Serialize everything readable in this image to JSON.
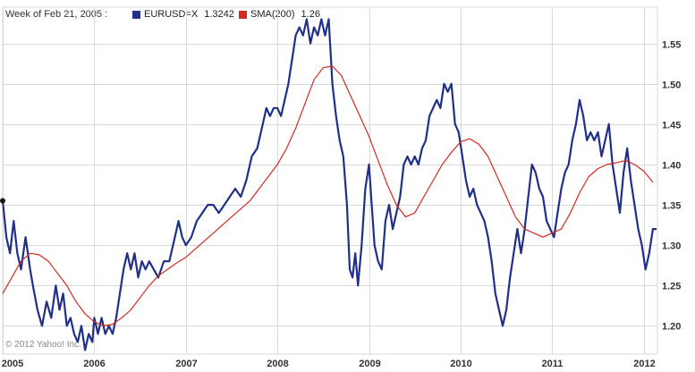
{
  "header": {
    "week_label": "Week of Feb 21, 2005 :",
    "series_1_label": "EURUSD=X",
    "series_1_value": "1.3242",
    "series_2_label": "SMA(200)",
    "series_2_value": "1.26"
  },
  "copyright": "© 2012 Yahoo! Inc.",
  "colors": {
    "primary": "#1f2f8a",
    "sma": "#d42a1e",
    "grid": "#d9d9d9",
    "axis": "#999999"
  },
  "chart_data": {
    "type": "line",
    "x_tick_labels": [
      "2005",
      "2006",
      "2007",
      "2008",
      "2009",
      "2010",
      "2011",
      "2012"
    ],
    "y_tick_labels": [
      "1.55",
      "1.50",
      "1.45",
      "1.40",
      "1.35",
      "1.30",
      "1.25",
      "1.20"
    ],
    "y_ticks": [
      1.55,
      1.5,
      1.45,
      1.4,
      1.35,
      1.3,
      1.25,
      1.2
    ],
    "xlim": [
      2005.0,
      2012.15
    ],
    "ylim": [
      1.165,
      1.595
    ],
    "grid": true,
    "series": [
      {
        "name": "EURUSD=X",
        "points": [
          [
            2005.0,
            1.355
          ],
          [
            2005.04,
            1.31
          ],
          [
            2005.08,
            1.29
          ],
          [
            2005.12,
            1.33
          ],
          [
            2005.16,
            1.29
          ],
          [
            2005.2,
            1.27
          ],
          [
            2005.25,
            1.31
          ],
          [
            2005.3,
            1.27
          ],
          [
            2005.33,
            1.25
          ],
          [
            2005.38,
            1.22
          ],
          [
            2005.43,
            1.2
          ],
          [
            2005.48,
            1.23
          ],
          [
            2005.53,
            1.21
          ],
          [
            2005.58,
            1.25
          ],
          [
            2005.62,
            1.22
          ],
          [
            2005.66,
            1.24
          ],
          [
            2005.7,
            1.2
          ],
          [
            2005.74,
            1.21
          ],
          [
            2005.78,
            1.19
          ],
          [
            2005.82,
            1.18
          ],
          [
            2005.86,
            1.2
          ],
          [
            2005.9,
            1.17
          ],
          [
            2005.94,
            1.19
          ],
          [
            2005.98,
            1.18
          ],
          [
            2006.0,
            1.21
          ],
          [
            2006.04,
            1.19
          ],
          [
            2006.08,
            1.21
          ],
          [
            2006.12,
            1.19
          ],
          [
            2006.16,
            1.2
          ],
          [
            2006.2,
            1.19
          ],
          [
            2006.24,
            1.21
          ],
          [
            2006.28,
            1.24
          ],
          [
            2006.32,
            1.27
          ],
          [
            2006.36,
            1.29
          ],
          [
            2006.4,
            1.27
          ],
          [
            2006.44,
            1.29
          ],
          [
            2006.48,
            1.26
          ],
          [
            2006.52,
            1.28
          ],
          [
            2006.56,
            1.27
          ],
          [
            2006.6,
            1.28
          ],
          [
            2006.65,
            1.27
          ],
          [
            2006.7,
            1.26
          ],
          [
            2006.76,
            1.28
          ],
          [
            2006.82,
            1.28
          ],
          [
            2006.88,
            1.31
          ],
          [
            2006.92,
            1.33
          ],
          [
            2006.96,
            1.31
          ],
          [
            2007.0,
            1.3
          ],
          [
            2007.06,
            1.31
          ],
          [
            2007.12,
            1.33
          ],
          [
            2007.18,
            1.34
          ],
          [
            2007.24,
            1.35
          ],
          [
            2007.3,
            1.35
          ],
          [
            2007.36,
            1.34
          ],
          [
            2007.42,
            1.35
          ],
          [
            2007.48,
            1.36
          ],
          [
            2007.54,
            1.37
          ],
          [
            2007.6,
            1.36
          ],
          [
            2007.66,
            1.38
          ],
          [
            2007.72,
            1.41
          ],
          [
            2007.78,
            1.42
          ],
          [
            2007.84,
            1.45
          ],
          [
            2007.88,
            1.47
          ],
          [
            2007.92,
            1.46
          ],
          [
            2007.96,
            1.47
          ],
          [
            2008.0,
            1.47
          ],
          [
            2008.04,
            1.46
          ],
          [
            2008.08,
            1.48
          ],
          [
            2008.12,
            1.5
          ],
          [
            2008.16,
            1.53
          ],
          [
            2008.2,
            1.56
          ],
          [
            2008.24,
            1.57
          ],
          [
            2008.28,
            1.56
          ],
          [
            2008.32,
            1.58
          ],
          [
            2008.36,
            1.55
          ],
          [
            2008.4,
            1.57
          ],
          [
            2008.44,
            1.56
          ],
          [
            2008.48,
            1.58
          ],
          [
            2008.52,
            1.56
          ],
          [
            2008.56,
            1.58
          ],
          [
            2008.6,
            1.5
          ],
          [
            2008.64,
            1.46
          ],
          [
            2008.68,
            1.43
          ],
          [
            2008.72,
            1.41
          ],
          [
            2008.76,
            1.35
          ],
          [
            2008.79,
            1.27
          ],
          [
            2008.82,
            1.26
          ],
          [
            2008.85,
            1.29
          ],
          [
            2008.88,
            1.25
          ],
          [
            2008.92,
            1.3
          ],
          [
            2008.96,
            1.37
          ],
          [
            2009.0,
            1.4
          ],
          [
            2009.03,
            1.35
          ],
          [
            2009.06,
            1.3
          ],
          [
            2009.1,
            1.28
          ],
          [
            2009.14,
            1.27
          ],
          [
            2009.18,
            1.33
          ],
          [
            2009.22,
            1.35
          ],
          [
            2009.26,
            1.32
          ],
          [
            2009.3,
            1.34
          ],
          [
            2009.34,
            1.36
          ],
          [
            2009.38,
            1.4
          ],
          [
            2009.42,
            1.41
          ],
          [
            2009.46,
            1.4
          ],
          [
            2009.5,
            1.41
          ],
          [
            2009.54,
            1.4
          ],
          [
            2009.58,
            1.42
          ],
          [
            2009.62,
            1.43
          ],
          [
            2009.66,
            1.46
          ],
          [
            2009.7,
            1.47
          ],
          [
            2009.74,
            1.48
          ],
          [
            2009.78,
            1.47
          ],
          [
            2009.82,
            1.5
          ],
          [
            2009.86,
            1.49
          ],
          [
            2009.9,
            1.5
          ],
          [
            2009.94,
            1.45
          ],
          [
            2009.98,
            1.44
          ],
          [
            2010.02,
            1.41
          ],
          [
            2010.06,
            1.38
          ],
          [
            2010.1,
            1.36
          ],
          [
            2010.14,
            1.37
          ],
          [
            2010.18,
            1.35
          ],
          [
            2010.22,
            1.34
          ],
          [
            2010.26,
            1.33
          ],
          [
            2010.3,
            1.31
          ],
          [
            2010.34,
            1.28
          ],
          [
            2010.38,
            1.24
          ],
          [
            2010.42,
            1.22
          ],
          [
            2010.46,
            1.2
          ],
          [
            2010.5,
            1.22
          ],
          [
            2010.54,
            1.26
          ],
          [
            2010.58,
            1.29
          ],
          [
            2010.62,
            1.32
          ],
          [
            2010.66,
            1.29
          ],
          [
            2010.7,
            1.32
          ],
          [
            2010.74,
            1.36
          ],
          [
            2010.78,
            1.4
          ],
          [
            2010.82,
            1.39
          ],
          [
            2010.86,
            1.37
          ],
          [
            2010.9,
            1.36
          ],
          [
            2010.94,
            1.33
          ],
          [
            2010.98,
            1.32
          ],
          [
            2011.02,
            1.31
          ],
          [
            2011.06,
            1.34
          ],
          [
            2011.1,
            1.37
          ],
          [
            2011.14,
            1.39
          ],
          [
            2011.18,
            1.4
          ],
          [
            2011.22,
            1.43
          ],
          [
            2011.26,
            1.45
          ],
          [
            2011.3,
            1.48
          ],
          [
            2011.34,
            1.46
          ],
          [
            2011.38,
            1.43
          ],
          [
            2011.42,
            1.44
          ],
          [
            2011.46,
            1.43
          ],
          [
            2011.5,
            1.44
          ],
          [
            2011.54,
            1.41
          ],
          [
            2011.58,
            1.43
          ],
          [
            2011.62,
            1.45
          ],
          [
            2011.66,
            1.4
          ],
          [
            2011.7,
            1.37
          ],
          [
            2011.74,
            1.34
          ],
          [
            2011.78,
            1.39
          ],
          [
            2011.82,
            1.42
          ],
          [
            2011.86,
            1.38
          ],
          [
            2011.9,
            1.35
          ],
          [
            2011.94,
            1.32
          ],
          [
            2011.98,
            1.3
          ],
          [
            2012.02,
            1.27
          ],
          [
            2012.06,
            1.29
          ],
          [
            2012.1,
            1.32
          ],
          [
            2012.14,
            1.32
          ]
        ]
      },
      {
        "name": "SMA(200)",
        "points": [
          [
            2005.0,
            1.24
          ],
          [
            2005.1,
            1.26
          ],
          [
            2005.2,
            1.28
          ],
          [
            2005.3,
            1.29
          ],
          [
            2005.4,
            1.288
          ],
          [
            2005.5,
            1.28
          ],
          [
            2005.6,
            1.265
          ],
          [
            2005.7,
            1.25
          ],
          [
            2005.8,
            1.23
          ],
          [
            2005.9,
            1.215
          ],
          [
            2006.0,
            1.205
          ],
          [
            2006.1,
            1.2
          ],
          [
            2006.2,
            1.202
          ],
          [
            2006.3,
            1.21
          ],
          [
            2006.4,
            1.22
          ],
          [
            2006.5,
            1.235
          ],
          [
            2006.6,
            1.25
          ],
          [
            2006.7,
            1.262
          ],
          [
            2006.8,
            1.27
          ],
          [
            2006.9,
            1.278
          ],
          [
            2007.0,
            1.285
          ],
          [
            2007.1,
            1.295
          ],
          [
            2007.2,
            1.305
          ],
          [
            2007.3,
            1.315
          ],
          [
            2007.4,
            1.325
          ],
          [
            2007.5,
            1.335
          ],
          [
            2007.6,
            1.345
          ],
          [
            2007.7,
            1.355
          ],
          [
            2007.8,
            1.37
          ],
          [
            2007.9,
            1.385
          ],
          [
            2008.0,
            1.4
          ],
          [
            2008.1,
            1.42
          ],
          [
            2008.2,
            1.445
          ],
          [
            2008.3,
            1.475
          ],
          [
            2008.4,
            1.505
          ],
          [
            2008.5,
            1.52
          ],
          [
            2008.6,
            1.522
          ],
          [
            2008.7,
            1.51
          ],
          [
            2008.8,
            1.485
          ],
          [
            2008.9,
            1.46
          ],
          [
            2009.0,
            1.435
          ],
          [
            2009.1,
            1.405
          ],
          [
            2009.2,
            1.375
          ],
          [
            2009.3,
            1.35
          ],
          [
            2009.4,
            1.335
          ],
          [
            2009.5,
            1.34
          ],
          [
            2009.6,
            1.36
          ],
          [
            2009.7,
            1.38
          ],
          [
            2009.8,
            1.4
          ],
          [
            2009.9,
            1.415
          ],
          [
            2010.0,
            1.428
          ],
          [
            2010.1,
            1.432
          ],
          [
            2010.2,
            1.425
          ],
          [
            2010.3,
            1.41
          ],
          [
            2010.4,
            1.385
          ],
          [
            2010.5,
            1.36
          ],
          [
            2010.6,
            1.335
          ],
          [
            2010.7,
            1.32
          ],
          [
            2010.8,
            1.315
          ],
          [
            2010.9,
            1.31
          ],
          [
            2011.0,
            1.315
          ],
          [
            2011.1,
            1.32
          ],
          [
            2011.2,
            1.34
          ],
          [
            2011.3,
            1.365
          ],
          [
            2011.4,
            1.385
          ],
          [
            2011.5,
            1.395
          ],
          [
            2011.6,
            1.4
          ],
          [
            2011.7,
            1.402
          ],
          [
            2011.8,
            1.405
          ],
          [
            2011.9,
            1.4
          ],
          [
            2012.0,
            1.392
          ],
          [
            2012.1,
            1.378
          ]
        ]
      }
    ]
  }
}
